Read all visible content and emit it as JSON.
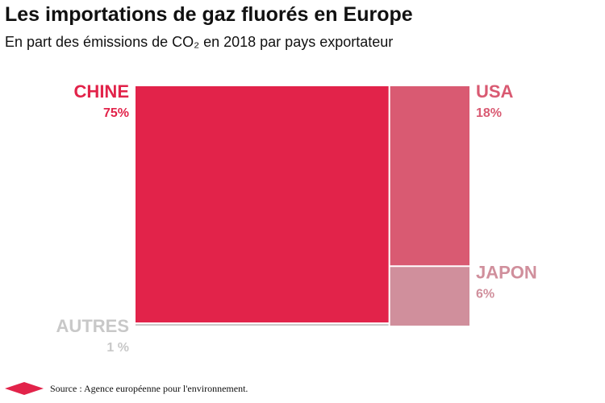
{
  "chart_data": {
    "type": "treemap",
    "title": "Les importations de gaz fluorés en Europe",
    "subtitle": "En part des émissions de CO₂ en 2018 par pays exportateur",
    "categories": [
      "CHINE",
      "AUTRES",
      "USA",
      "JAPON"
    ],
    "values": [
      75,
      1,
      18,
      6
    ],
    "value_labels": [
      "75%",
      "1 %",
      "18%",
      "6%"
    ],
    "colors": [
      "#e2234a",
      "#c8c8c8",
      "#d95a72",
      "#d08f9c"
    ],
    "source": "Source : Agence européenne pour l'environnement."
  }
}
